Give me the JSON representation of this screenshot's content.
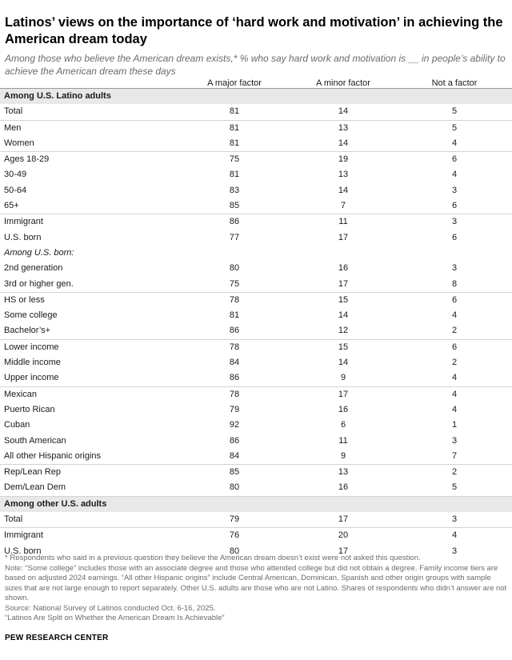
{
  "title": "Latinos’ views on the importance of ‘hard work and motivation’ in achieving the American dream today",
  "subtitle": "Among those who believe the American dream exists,* % who say hard work and motivation is __ in people’s ability to achieve the American dream these days",
  "chart_data": {
    "type": "table",
    "columns": [
      "A major factor",
      "A minor factor",
      "Not a factor"
    ],
    "rows": [
      {
        "kind": "section",
        "label": "Among U.S. Latino adults"
      },
      {
        "label": "Total",
        "values": [
          "81",
          "14",
          "5"
        ]
      },
      {
        "label": "Men",
        "values": [
          "81",
          "13",
          "5"
        ],
        "sep": true
      },
      {
        "label": "Women",
        "values": [
          "81",
          "14",
          "4"
        ]
      },
      {
        "label": "Ages 18-29",
        "values": [
          "75",
          "19",
          "6"
        ],
        "sep": true
      },
      {
        "label": "30-49",
        "values": [
          "81",
          "13",
          "4"
        ]
      },
      {
        "label": "50-64",
        "values": [
          "83",
          "14",
          "3"
        ]
      },
      {
        "label": "65+",
        "values": [
          "85",
          "7",
          "6"
        ]
      },
      {
        "label": "Immigrant",
        "values": [
          "86",
          "11",
          "3"
        ],
        "sep": true
      },
      {
        "label": "U.S. born",
        "values": [
          "77",
          "17",
          "6"
        ]
      },
      {
        "kind": "sub",
        "label": "Among U.S. born:"
      },
      {
        "label": "2nd generation",
        "values": [
          "80",
          "16",
          "3"
        ]
      },
      {
        "label": "3rd or higher gen.",
        "values": [
          "75",
          "17",
          "8"
        ]
      },
      {
        "label": "HS or less",
        "values": [
          "78",
          "15",
          "6"
        ],
        "sep": true
      },
      {
        "label": "Some college",
        "values": [
          "81",
          "14",
          "4"
        ]
      },
      {
        "label": "Bachelor’s+",
        "values": [
          "86",
          "12",
          "2"
        ]
      },
      {
        "label": "Lower income",
        "values": [
          "78",
          "15",
          "6"
        ],
        "sep": true
      },
      {
        "label": "Middle income",
        "values": [
          "84",
          "14",
          "2"
        ]
      },
      {
        "label": "Upper income",
        "values": [
          "86",
          "9",
          "4"
        ]
      },
      {
        "label": "Mexican",
        "values": [
          "78",
          "17",
          "4"
        ],
        "sep": true
      },
      {
        "label": "Puerto Rican",
        "values": [
          "79",
          "16",
          "4"
        ]
      },
      {
        "label": "Cuban",
        "values": [
          "92",
          "6",
          "1"
        ]
      },
      {
        "label": "South American",
        "values": [
          "86",
          "11",
          "3"
        ]
      },
      {
        "label": "All other Hispanic origins",
        "values": [
          "84",
          "9",
          "7"
        ]
      },
      {
        "label": "Rep/Lean Rep",
        "values": [
          "85",
          "13",
          "2"
        ],
        "sep": true
      },
      {
        "label": "Dem/Lean Dem",
        "values": [
          "80",
          "16",
          "5"
        ]
      },
      {
        "kind": "section",
        "label": "Among other U.S. adults"
      },
      {
        "label": "Total",
        "values": [
          "79",
          "17",
          "3"
        ]
      },
      {
        "label": "Immigrant",
        "values": [
          "76",
          "20",
          "4"
        ],
        "sep": true
      },
      {
        "label": "U.S. born",
        "values": [
          "80",
          "17",
          "3"
        ]
      }
    ]
  },
  "notes": [
    "* Respondents who said in a previous question they believe the American dream doesn’t exist were not asked this question.",
    "Note: “Some college” includes those with an associate degree and those who attended college but did not obtain a degree. Family income tiers are based on adjusted 2024 earnings. “All other Hispanic origins” include Central American, Dominican, Spanish and other origin groups with sample sizes that are not large enough to report separately. Other U.S. adults are those who are not Latino. Shares of respondents who didn’t answer are not shown.",
    "Source: National Survey of Latinos conducted Oct. 6-16, 2025.",
    "“Latinos Are Split on Whether the American Dream Is Achievable”"
  ],
  "brand": "PEW RESEARCH CENTER"
}
